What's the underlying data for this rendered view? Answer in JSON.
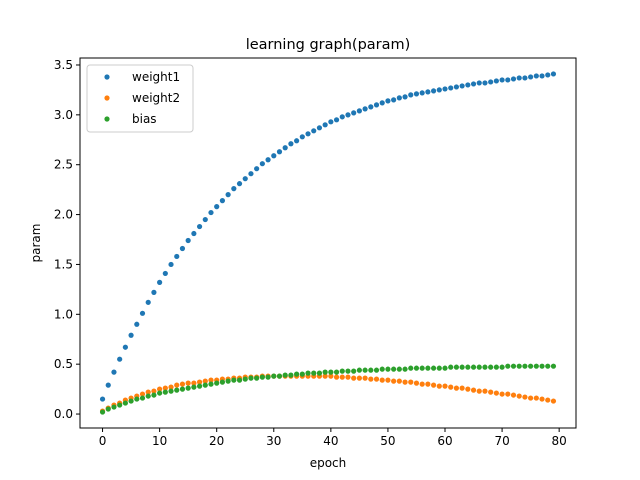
{
  "chart_data": {
    "type": "scatter",
    "title": "learning graph(param)",
    "xlabel": "epoch",
    "ylabel": "param",
    "xlim": [
      -3.95,
      82.95
    ],
    "ylim": [
      -0.14,
      3.57
    ],
    "xticks": [
      0,
      10,
      20,
      30,
      40,
      50,
      60,
      70,
      80
    ],
    "yticks": [
      0.0,
      0.5,
      1.0,
      1.5,
      2.0,
      2.5,
      3.0,
      3.5
    ],
    "ytick_labels": [
      "0.0",
      "0.5",
      "1.0",
      "1.5",
      "2.0",
      "2.5",
      "3.0",
      "3.5"
    ],
    "legend_position": "upper-left",
    "grid": false,
    "x": [
      0,
      1,
      2,
      3,
      4,
      5,
      6,
      7,
      8,
      9,
      10,
      11,
      12,
      13,
      14,
      15,
      16,
      17,
      18,
      19,
      20,
      21,
      22,
      23,
      24,
      25,
      26,
      27,
      28,
      29,
      30,
      31,
      32,
      33,
      34,
      35,
      36,
      37,
      38,
      39,
      40,
      41,
      42,
      43,
      44,
      45,
      46,
      47,
      48,
      49,
      50,
      51,
      52,
      53,
      54,
      55,
      56,
      57,
      58,
      59,
      60,
      61,
      62,
      63,
      64,
      65,
      66,
      67,
      68,
      69,
      70,
      71,
      72,
      73,
      74,
      75,
      76,
      77,
      78,
      79
    ],
    "series": [
      {
        "name": "weight1",
        "color": "#1f77b4",
        "values": [
          0.15,
          0.29,
          0.42,
          0.55,
          0.67,
          0.79,
          0.9,
          1.01,
          1.12,
          1.22,
          1.32,
          1.41,
          1.5,
          1.58,
          1.66,
          1.74,
          1.81,
          1.88,
          1.95,
          2.02,
          2.08,
          2.14,
          2.2,
          2.26,
          2.31,
          2.36,
          2.41,
          2.46,
          2.51,
          2.55,
          2.59,
          2.63,
          2.67,
          2.71,
          2.74,
          2.78,
          2.81,
          2.84,
          2.87,
          2.9,
          2.93,
          2.95,
          2.98,
          3.0,
          3.02,
          3.04,
          3.06,
          3.08,
          3.1,
          3.12,
          3.14,
          3.15,
          3.17,
          3.18,
          3.2,
          3.21,
          3.22,
          3.23,
          3.24,
          3.25,
          3.26,
          3.27,
          3.28,
          3.29,
          3.3,
          3.31,
          3.32,
          3.32,
          3.33,
          3.34,
          3.35,
          3.35,
          3.36,
          3.37,
          3.37,
          3.38,
          3.39,
          3.39,
          3.4,
          3.41
        ]
      },
      {
        "name": "weight2",
        "color": "#ff7f0e",
        "values": [
          0.03,
          0.06,
          0.09,
          0.11,
          0.14,
          0.16,
          0.18,
          0.2,
          0.22,
          0.23,
          0.25,
          0.26,
          0.27,
          0.29,
          0.3,
          0.31,
          0.31,
          0.32,
          0.33,
          0.34,
          0.34,
          0.35,
          0.35,
          0.36,
          0.36,
          0.37,
          0.37,
          0.37,
          0.38,
          0.38,
          0.38,
          0.38,
          0.38,
          0.38,
          0.38,
          0.38,
          0.38,
          0.38,
          0.38,
          0.38,
          0.38,
          0.37,
          0.37,
          0.37,
          0.36,
          0.36,
          0.36,
          0.35,
          0.35,
          0.34,
          0.34,
          0.33,
          0.33,
          0.32,
          0.32,
          0.31,
          0.3,
          0.3,
          0.29,
          0.28,
          0.28,
          0.27,
          0.26,
          0.26,
          0.25,
          0.24,
          0.23,
          0.23,
          0.22,
          0.21,
          0.2,
          0.2,
          0.19,
          0.18,
          0.17,
          0.16,
          0.16,
          0.15,
          0.14,
          0.13
        ]
      },
      {
        "name": "bias",
        "color": "#2ca02c",
        "values": [
          0.02,
          0.05,
          0.07,
          0.09,
          0.11,
          0.13,
          0.15,
          0.16,
          0.18,
          0.19,
          0.21,
          0.22,
          0.23,
          0.24,
          0.25,
          0.26,
          0.27,
          0.28,
          0.29,
          0.3,
          0.31,
          0.32,
          0.33,
          0.34,
          0.34,
          0.35,
          0.36,
          0.36,
          0.37,
          0.37,
          0.38,
          0.38,
          0.39,
          0.39,
          0.4,
          0.4,
          0.41,
          0.41,
          0.41,
          0.42,
          0.42,
          0.42,
          0.43,
          0.43,
          0.43,
          0.44,
          0.44,
          0.44,
          0.44,
          0.45,
          0.45,
          0.45,
          0.45,
          0.45,
          0.46,
          0.46,
          0.46,
          0.46,
          0.46,
          0.46,
          0.46,
          0.47,
          0.47,
          0.47,
          0.47,
          0.47,
          0.47,
          0.47,
          0.47,
          0.47,
          0.47,
          0.48,
          0.48,
          0.48,
          0.48,
          0.48,
          0.48,
          0.48,
          0.48,
          0.48
        ]
      }
    ]
  }
}
